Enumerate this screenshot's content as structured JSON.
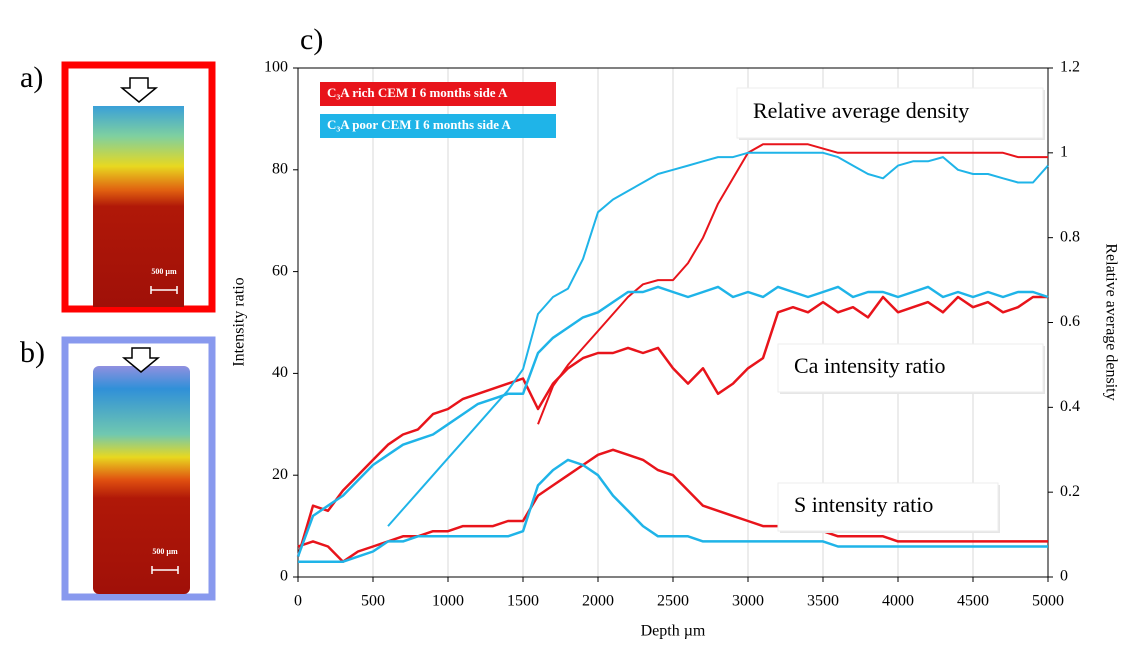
{
  "panels": [
    {
      "label": "a)",
      "scale_bar": "500 µm"
    },
    {
      "label": "b)",
      "scale_bar": "500 µm"
    }
  ],
  "chart_data": {
    "type": "line",
    "label": "c)",
    "x_label": "Depth µm",
    "y_label": "Intensity ratio",
    "y2_label": "Relative average density",
    "annotations": [
      "Relative average density",
      "Ca intensity ratio",
      "S intensity ratio"
    ],
    "x": [
      0,
      100,
      200,
      300,
      400,
      500,
      600,
      700,
      800,
      900,
      1000,
      1100,
      1200,
      1300,
      1400,
      1500,
      1600,
      1700,
      1800,
      1900,
      2000,
      2100,
      2200,
      2300,
      2400,
      2500,
      2600,
      2700,
      2800,
      2900,
      3000,
      3100,
      3200,
      3300,
      3400,
      3500,
      3600,
      3700,
      3800,
      3900,
      4000,
      4100,
      4200,
      4300,
      4400,
      4500,
      4600,
      4700,
      4800,
      4900,
      5000
    ],
    "xlim": [
      0,
      5000
    ],
    "xticks": [
      0,
      500,
      1000,
      1500,
      2000,
      2500,
      3000,
      3500,
      4000,
      4500,
      5000
    ],
    "ylim": [
      0,
      100
    ],
    "yticks": [
      0,
      20,
      40,
      60,
      80,
      100
    ],
    "y2lim": [
      0,
      1.2
    ],
    "y2ticks": [
      0,
      0.2,
      0.4,
      0.6,
      0.8,
      1,
      1.2
    ],
    "grid": "x",
    "series": [
      {
        "name": "C₃A rich CEM I 6 months side A",
        "color": "#e8141b",
        "ca_intensity": [
          4,
          14,
          13,
          17,
          20,
          23,
          26,
          28,
          29,
          32,
          33,
          35,
          36,
          37,
          38,
          39,
          33,
          38,
          41,
          43,
          44,
          44,
          45,
          44,
          45,
          41,
          38,
          41,
          36,
          38,
          41,
          43,
          52,
          53,
          52,
          54,
          52,
          53,
          51,
          55,
          52,
          53,
          54,
          52,
          55,
          53,
          54,
          52,
          53,
          55,
          55
        ],
        "s_intensity": [
          6,
          7,
          6,
          3,
          5,
          6,
          7,
          8,
          8,
          9,
          9,
          10,
          10,
          10,
          11,
          11,
          16,
          18,
          20,
          22,
          24,
          25,
          24,
          23,
          21,
          20,
          17,
          14,
          13,
          12,
          11,
          10,
          10,
          9,
          9,
          9,
          8,
          8,
          8,
          8,
          7,
          7,
          7,
          7,
          7,
          7,
          7,
          7,
          7,
          7,
          7
        ],
        "density": [
          null,
          null,
          null,
          null,
          null,
          null,
          null,
          null,
          null,
          null,
          null,
          null,
          null,
          null,
          null,
          null,
          0.36,
          0.45,
          0.5,
          0.54,
          0.58,
          0.62,
          0.66,
          0.69,
          0.7,
          0.7,
          0.74,
          0.8,
          0.88,
          0.94,
          1.0,
          1.02,
          1.02,
          1.02,
          1.02,
          1.01,
          1.0,
          1.0,
          1.0,
          1.0,
          1.0,
          1.0,
          1.0,
          1.0,
          1.0,
          1.0,
          1.0,
          1.0,
          0.99,
          0.99,
          0.99
        ]
      },
      {
        "name": "C₃A poor CEM I 6 months side A",
        "color": "#1fb4e8",
        "ca_intensity": [
          4,
          12,
          14,
          16,
          19,
          22,
          24,
          26,
          27,
          28,
          30,
          32,
          34,
          35,
          36,
          36,
          44,
          47,
          49,
          51,
          52,
          54,
          56,
          56,
          57,
          56,
          55,
          56,
          57,
          55,
          56,
          55,
          57,
          56,
          55,
          56,
          57,
          55,
          56,
          56,
          55,
          56,
          57,
          55,
          56,
          55,
          56,
          55,
          56,
          56,
          55
        ],
        "s_intensity": [
          3,
          3,
          3,
          3,
          4,
          5,
          7,
          7,
          8,
          8,
          8,
          8,
          8,
          8,
          8,
          9,
          18,
          21,
          23,
          22,
          20,
          16,
          13,
          10,
          8,
          8,
          8,
          7,
          7,
          7,
          7,
          7,
          7,
          7,
          7,
          7,
          6,
          6,
          6,
          6,
          6,
          6,
          6,
          6,
          6,
          6,
          6,
          6,
          6,
          6,
          6
        ],
        "density": [
          null,
          null,
          null,
          null,
          null,
          null,
          0.12,
          0.16,
          0.2,
          0.24,
          0.28,
          0.32,
          0.36,
          0.4,
          0.44,
          0.49,
          0.62,
          0.66,
          0.68,
          0.75,
          0.86,
          0.89,
          0.91,
          0.93,
          0.95,
          0.96,
          0.97,
          0.98,
          0.99,
          0.99,
          1.0,
          1.0,
          1.0,
          1.0,
          1.0,
          1.0,
          0.99,
          0.97,
          0.95,
          0.94,
          0.97,
          0.98,
          0.98,
          0.99,
          0.96,
          0.95,
          0.95,
          0.94,
          0.93,
          0.93,
          0.97
        ]
      }
    ]
  }
}
